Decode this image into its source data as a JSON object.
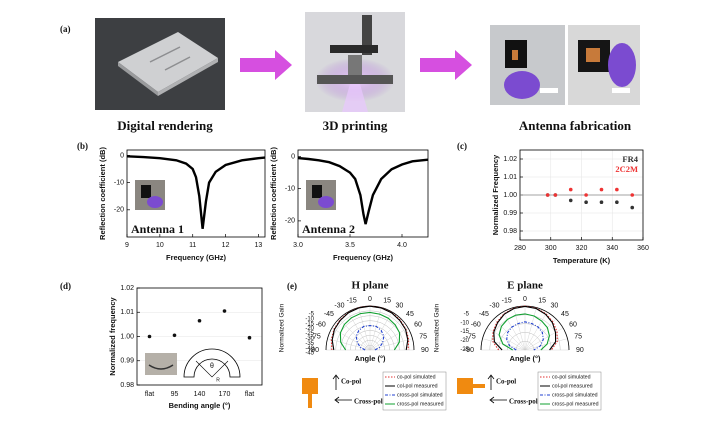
{
  "panel_labels": [
    "(a)",
    "(b)",
    "(c)",
    "(d)",
    "(e)"
  ],
  "captions": [
    "Digital rendering",
    "3D printing",
    "Antenna fabrication"
  ],
  "chart_data": [
    {
      "type": "line",
      "x_label": "Frequency (GHz)",
      "y_label": "Reflection coefficient (dB)",
      "annotation": "Antenna 1",
      "x": [
        9,
        9.5,
        10,
        10.5,
        10.8,
        11,
        11.1,
        11.2,
        11.3,
        11.4,
        11.5,
        11.7,
        12,
        12.5,
        13,
        13.2
      ],
      "series": [
        {
          "color": "#000000",
          "values": [
            -0.3,
            -0.6,
            -1,
            -1.8,
            -3,
            -5,
            -8,
            -15,
            -27,
            -17,
            -10,
            -6,
            -3.5,
            -1.8,
            -1,
            -0.8
          ]
        }
      ],
      "xlim": [
        9,
        13.2
      ],
      "xticks": [
        9,
        10,
        11,
        12,
        13
      ],
      "ylim": [
        -30,
        2
      ],
      "yticks": [
        0,
        -10,
        -20
      ]
    },
    {
      "type": "line",
      "x_label": "Frequency (GHz)",
      "y_label": "Reflection coefficient (dB)",
      "annotation": "Antenna 2",
      "x": [
        3.0,
        3.1,
        3.2,
        3.3,
        3.4,
        3.5,
        3.55,
        3.6,
        3.63,
        3.65,
        3.68,
        3.72,
        3.8,
        3.9,
        4.0,
        4.1,
        4.25
      ],
      "series": [
        {
          "color": "#000000",
          "values": [
            -0.5,
            -0.8,
            -1.2,
            -1.8,
            -3,
            -5,
            -7,
            -12,
            -18,
            -21,
            -17,
            -12,
            -7,
            -4,
            -2.5,
            -1.5,
            -1
          ]
        }
      ],
      "xlim": [
        3.0,
        4.25
      ],
      "xticks": [
        {
          "value": 3,
          "label": "3.0"
        },
        3.5,
        {
          "value": 4,
          "label": "4.0"
        }
      ],
      "ylim": [
        -25,
        2
      ],
      "yticks": [
        0,
        -10,
        -20
      ]
    },
    {
      "type": "scatter",
      "x_label": "Temperature (K)",
      "y_label": "Normalized Frequency",
      "ref_line": 1,
      "series": [
        {
          "name": "FR4",
          "color": "#333333",
          "x": [
            298,
            303,
            313,
            323,
            333,
            343,
            353
          ],
          "values": [
            1.0,
            1.0,
            0.997,
            0.996,
            0.996,
            0.996,
            0.993
          ]
        },
        {
          "name": "2C2M",
          "color": "#ee3333",
          "x": [
            298,
            303,
            313,
            323,
            333,
            343,
            353
          ],
          "values": [
            1.0,
            1.0,
            1.003,
            1.0,
            1.003,
            1.003,
            1.0
          ]
        }
      ],
      "xlim": [
        280,
        360
      ],
      "xticks": [
        280,
        300,
        320,
        340,
        360
      ],
      "ylim": [
        0.975,
        1.025
      ],
      "yticks": [
        0.98,
        0.99,
        {
          "value": 1,
          "label": "1.00"
        },
        1.01,
        1.02
      ]
    },
    {
      "type": "scatter",
      "x_label": "Bending angle (°)",
      "y_label": "Normalized frequency",
      "inset_labels": [
        "θ",
        "R"
      ],
      "categories": [
        "flat",
        "95",
        "140",
        "170",
        "flat"
      ],
      "series": [
        {
          "color": "#111111",
          "values": [
            1.0,
            1.0005,
            1.0065,
            1.0105,
            0.9995
          ]
        }
      ],
      "ylim": [
        0.98,
        1.02
      ],
      "yticks": [
        0.98,
        0.99,
        {
          "value": 1,
          "label": "1.00"
        },
        1.01,
        1.02
      ]
    },
    {
      "type": "polar",
      "title": "H plane",
      "x_label": "Angle (°)",
      "y_label": "Normalized Gain",
      "annotations": [
        "Co-pol",
        "Cross-pol"
      ],
      "theta": [
        -90,
        -75,
        -60,
        -45,
        -30,
        -15,
        0,
        15,
        30,
        45,
        60,
        75,
        90
      ],
      "rlim": [
        -45,
        0
      ],
      "rticks": [
        -5,
        -10,
        -15,
        -20,
        -25,
        -30,
        -35,
        -40,
        -45
      ],
      "series": [
        {
          "name": "co-pol simulated",
          "color": "#e03030",
          "values": [
            -6,
            -4,
            -2.5,
            -1.5,
            -0.8,
            -0.3,
            0,
            -0.3,
            -0.8,
            -1.5,
            -2.5,
            -4,
            -6
          ]
        },
        {
          "name": "col-pol measured",
          "color": "#000000",
          "values": [
            -8,
            -5,
            -3,
            -2,
            -1,
            -0.5,
            -0.2,
            -0.5,
            -1,
            -2,
            -3,
            -5,
            -8
          ]
        },
        {
          "name": "cross-pol simulated",
          "color": "#2040d0",
          "values": [
            -40,
            -35,
            -30,
            -25,
            -22,
            -20,
            -20,
            -20,
            -22,
            -25,
            -30,
            -35,
            -40
          ]
        },
        {
          "name": "cross-pol measured",
          "color": "#10a030",
          "values": [
            -20,
            -14,
            -10,
            -8,
            -7,
            -6.5,
            -6.5,
            -7,
            -7.5,
            -8.5,
            -10,
            -14,
            -20
          ]
        }
      ]
    },
    {
      "type": "polar",
      "title": "E plane",
      "x_label": "Angle (°)",
      "y_label": "Normalized Gain",
      "annotations": [
        "Co-pol",
        "Cross-pol"
      ],
      "theta": [
        -90,
        -75,
        -60,
        -45,
        -30,
        -15,
        0,
        15,
        30,
        45,
        60,
        75,
        90
      ],
      "rlim": [
        -25,
        0
      ],
      "rticks": [
        -5,
        -10,
        -15,
        -20,
        -25
      ],
      "series": [
        {
          "name": "co-pol simulated",
          "color": "#e03030",
          "values": [
            -10,
            -6,
            -4,
            -2.5,
            -1.2,
            -0.4,
            0,
            -0.4,
            -1.2,
            -2.5,
            -4,
            -6,
            -10
          ]
        },
        {
          "name": "col-pol measured",
          "color": "#000000",
          "values": [
            -12,
            -7,
            -4.5,
            -3,
            -1.5,
            -0.6,
            -0.2,
            -0.6,
            -1.6,
            -3,
            -5,
            -7,
            -11
          ]
        },
        {
          "name": "cross-pol simulated",
          "color": "#2040d0",
          "values": [
            -20,
            -16,
            -13,
            -11,
            -10,
            -9.5,
            -9,
            -9.5,
            -10,
            -11,
            -13,
            -16,
            -20
          ]
        },
        {
          "name": "cross-pol measured",
          "color": "#10a030",
          "values": [
            -18,
            -12,
            -8,
            -6,
            -5,
            -4.5,
            -4.5,
            -5,
            -6,
            -7,
            -9,
            -12,
            -16
          ]
        }
      ]
    }
  ]
}
